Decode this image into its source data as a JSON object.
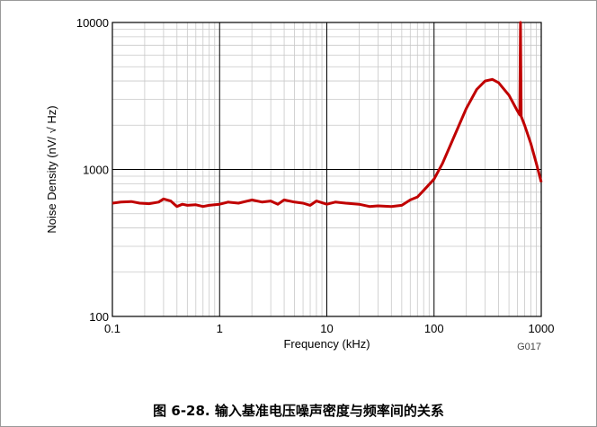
{
  "chart_data": {
    "type": "line",
    "xlabel": "Frequency (kHz)",
    "ylabel": "Noise Density (nV/ √ Hz)",
    "xscale": "log",
    "yscale": "log",
    "xlim": [
      0.1,
      1000
    ],
    "ylim": [
      100,
      10000
    ],
    "x_ticks": [
      "0.1",
      "1",
      "10",
      "100",
      "1000"
    ],
    "y_ticks": [
      "100",
      "1000",
      "10000"
    ],
    "grid": true,
    "line_color": "#c00000",
    "series": [
      {
        "x": [
          0.1,
          0.12,
          0.15,
          0.18,
          0.22,
          0.27,
          0.3,
          0.35,
          0.4,
          0.45,
          0.5,
          0.6,
          0.7,
          0.8,
          0.9,
          1.0,
          1.2,
          1.5,
          2.0,
          2.5,
          3.0,
          3.5,
          4.0,
          5.0,
          6.0,
          7.0,
          8.0,
          10,
          12,
          15,
          20,
          25,
          30,
          40,
          50,
          60,
          70,
          80,
          90,
          100,
          120,
          150,
          200,
          250,
          300,
          350,
          400,
          500,
          600,
          630,
          640,
          650,
          700,
          800,
          900,
          1000
        ],
        "y": [
          590,
          600,
          605,
          590,
          585,
          600,
          630,
          610,
          560,
          580,
          570,
          575,
          560,
          570,
          575,
          580,
          600,
          590,
          620,
          600,
          610,
          580,
          620,
          600,
          590,
          570,
          610,
          580,
          600,
          590,
          580,
          560,
          565,
          560,
          570,
          620,
          650,
          720,
          790,
          860,
          1100,
          1600,
          2600,
          3500,
          4000,
          4100,
          3900,
          3200,
          2500,
          2350,
          10000,
          2300,
          2000,
          1500,
          1100,
          820
        ]
      }
    ],
    "code_label": "G017"
  },
  "caption": "图 6-28. 输入基准电压噪声密度与频率间的关系"
}
